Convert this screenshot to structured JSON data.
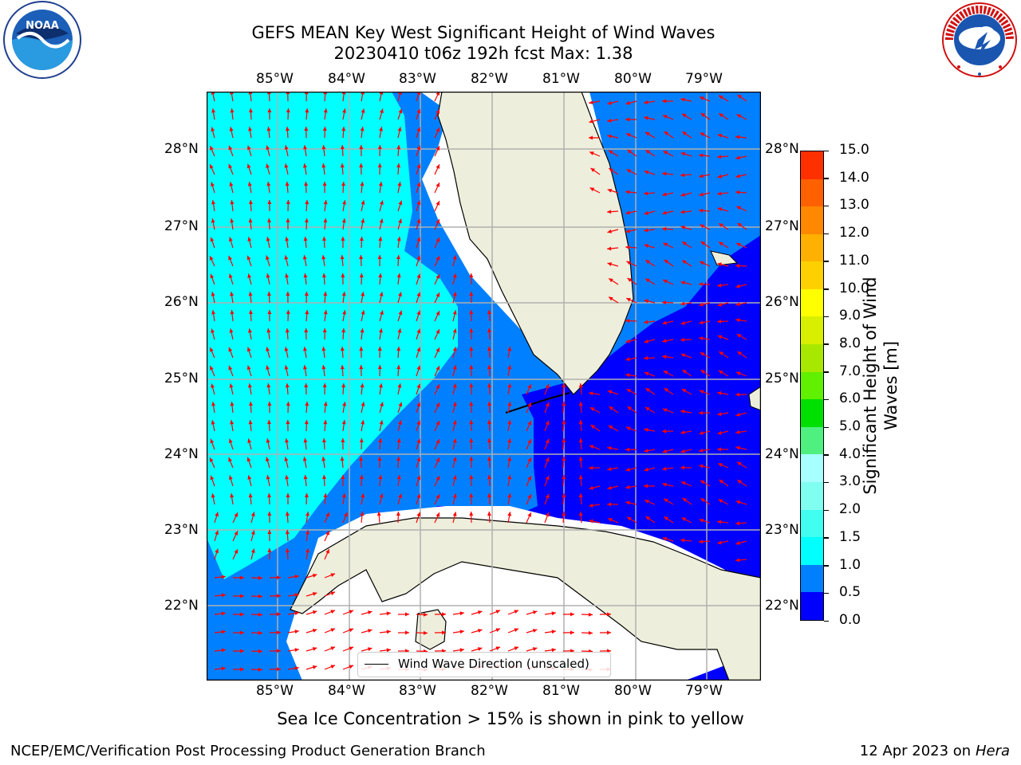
{
  "header": {
    "title_line1": "GEFS MEAN Key West Significant Height of Wind Waves",
    "title_line2": "20230410 t06z 192h fcst   Max: 1.38"
  },
  "logos": {
    "left": "NOAA",
    "left_ring_text": "NATIONAL OCEANIC AND ATMOSPHERIC ADMINISTRATION · U.S. DEPARTMENT OF COMMERCE",
    "right_ring_text": "NATIONAL WEATHER SERVICE"
  },
  "map": {
    "lon_labels": [
      "85°W",
      "84°W",
      "83°W",
      "82°W",
      "81°W",
      "80°W",
      "79°W"
    ],
    "lat_labels": [
      "28°N",
      "27°N",
      "26°N",
      "25°N",
      "24°N",
      "23°N",
      "22°N"
    ],
    "legend_label": "Wind Wave Direction (unscaled)",
    "colors": {
      "land": "#eeeedc",
      "arrow": "#ff0000",
      "grid": "#b0b0b0"
    }
  },
  "colorbar": {
    "title": "Significant Height of Wind Waves [m]",
    "title_line1": "Significant Height of Wind",
    "title_line2": "Waves [m]",
    "tick_labels": [
      "0.0",
      "0.5",
      "1.0",
      "1.5",
      "2.0",
      "3.0",
      "4.0",
      "5.0",
      "6.0",
      "7.0",
      "8.0",
      "9.0",
      "10.0",
      "11.0",
      "12.0",
      "13.0",
      "14.0",
      "15.0"
    ],
    "colors": [
      "#0000ff",
      "#0080ff",
      "#00ffff",
      "#40fff0",
      "#80fff0",
      "#a8ffff",
      "#50f080",
      "#00e000",
      "#60f000",
      "#a8e800",
      "#d8f000",
      "#ffff00",
      "#ffd000",
      "#ffb000",
      "#ff8800",
      "#ff6000",
      "#ff3000",
      "#ff0000"
    ]
  },
  "footer": {
    "note": "Sea Ice Concentration > 15% is shown in pink to yellow",
    "left": "NCEP/EMC/Verification Post Processing Product Generation Branch",
    "right_prefix": "12 Apr 2023 on ",
    "right_host": "Hera"
  }
}
